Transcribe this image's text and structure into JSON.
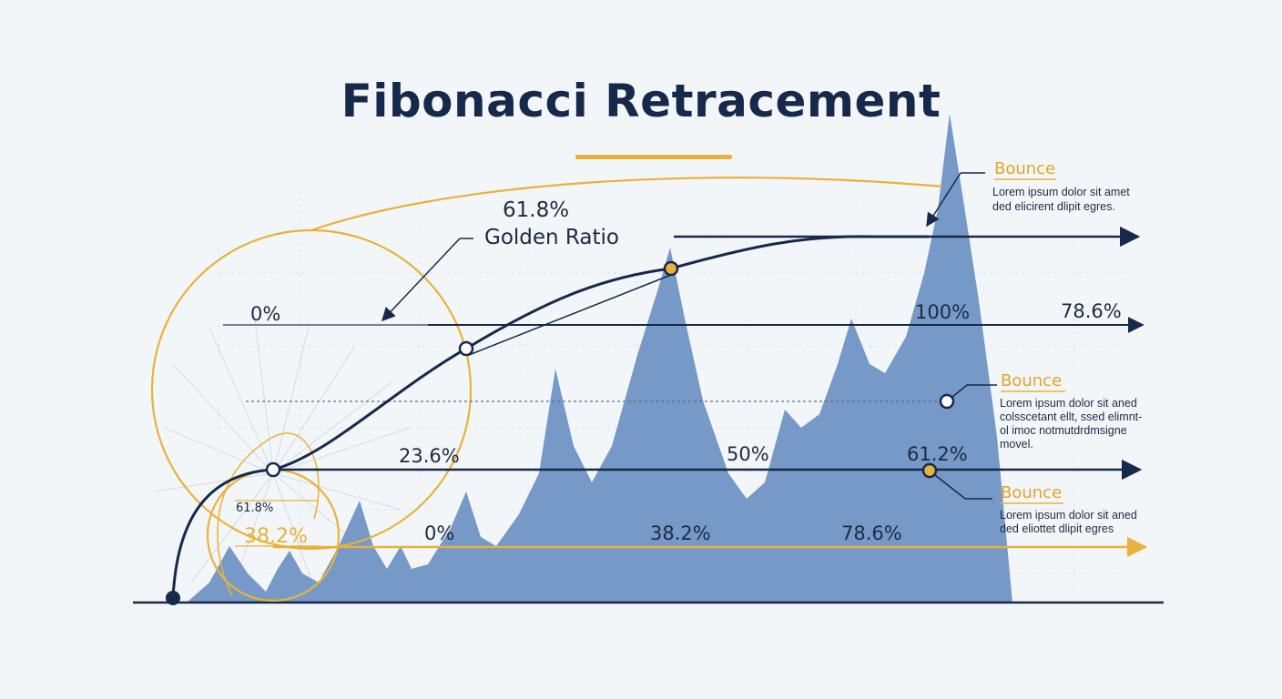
{
  "title": "Fibonacci Retracement",
  "labels": {
    "golden_pct": "61.8%",
    "golden_ratio": "Golden Ratio",
    "l_0_top": "0%",
    "l_100": "100%",
    "l_786_top": "78.6%",
    "l_236": "23.6%",
    "l_50": "50%",
    "l_612": "61.2%",
    "l_0_bottom": "0%",
    "l_382_bottom": "38.2%",
    "l_786_bottom": "78.6%",
    "inner_618": "61.8%",
    "inner_382": "38.2%"
  },
  "callouts": [
    {
      "title": "Bounce",
      "lines": [
        "Lorem ipsum dolor sit amet",
        "ded elicirent dlipit egres."
      ]
    },
    {
      "title": "Bounce",
      "lines": [
        "Lorem ipsum dolor sit aned",
        "colsscetant ellt, ssed elimnt-",
        "ol imoc notmutdrdmsigne",
        "movel."
      ]
    },
    {
      "title": "Bounce",
      "lines": [
        "Lorem ipsum dolor sit aned",
        "ded eliottet dlipit egres"
      ]
    }
  ],
  "colors": {
    "navy": "#17294a",
    "gold": "#e8b23a",
    "area": "#6f93c4"
  }
}
